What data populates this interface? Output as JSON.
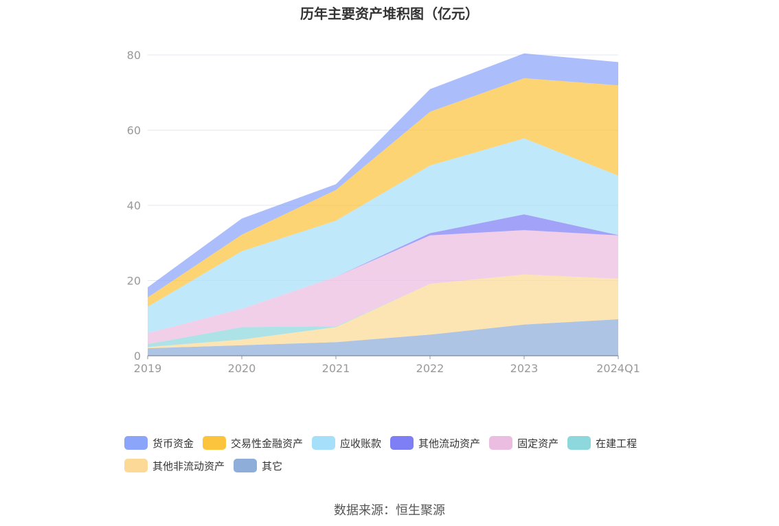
{
  "title": "历年主要资产堆积图（亿元）",
  "source": "数据来源：恒生聚源",
  "chart_data": {
    "type": "area",
    "stacked": true,
    "categories": [
      "2019",
      "2020",
      "2021",
      "2022",
      "2023",
      "2024Q1"
    ],
    "ylim": [
      0,
      80
    ],
    "yticks": [
      0,
      20,
      40,
      60,
      80
    ],
    "grid": true,
    "legend_position": "bottom",
    "series": [
      {
        "name": "其它",
        "color": "#8fadd9",
        "values": [
          2.0,
          2.8,
          3.6,
          5.6,
          8.3,
          9.7
        ]
      },
      {
        "name": "其他非流动资产",
        "color": "#fcd996",
        "values": [
          0.3,
          1.5,
          4.0,
          13.5,
          13.3,
          10.8
        ]
      },
      {
        "name": "在建工程",
        "color": "#8dd8dc",
        "values": [
          0.8,
          3.3,
          0.2,
          0.0,
          0.0,
          0.0
        ]
      },
      {
        "name": "固定资产",
        "color": "#ebbde0",
        "values": [
          2.9,
          4.9,
          13.2,
          12.9,
          11.8,
          11.5
        ]
      },
      {
        "name": "其他流动资产",
        "color": "#7e7ef5",
        "values": [
          0.0,
          0.0,
          0.0,
          0.6,
          4.2,
          0.1
        ]
      },
      {
        "name": "应收账款",
        "color": "#a6dffa",
        "values": [
          7.0,
          15.3,
          14.9,
          18.0,
          20.2,
          15.8
        ]
      },
      {
        "name": "交易性金融资产",
        "color": "#fcc43d",
        "values": [
          2.5,
          4.4,
          8.2,
          14.3,
          16.0,
          24.0
        ]
      },
      {
        "name": "货币资金",
        "color": "#8aa5fa",
        "values": [
          2.7,
          4.3,
          1.5,
          6.0,
          6.6,
          6.2
        ]
      }
    ]
  },
  "legend": {
    "rows": [
      [
        {
          "label": "货币资金",
          "color": "#8aa5fa"
        },
        {
          "label": "交易性金融资产",
          "color": "#fcc43d"
        },
        {
          "label": "应收账款",
          "color": "#a6dffa"
        },
        {
          "label": "其他流动资产",
          "color": "#7e7ef5"
        },
        {
          "label": "固定资产",
          "color": "#ebbde0"
        },
        {
          "label": "在建工程",
          "color": "#8dd8dc"
        }
      ],
      [
        {
          "label": "其他非流动资产",
          "color": "#fcd996"
        },
        {
          "label": "其它",
          "color": "#8fadd9"
        }
      ]
    ]
  }
}
